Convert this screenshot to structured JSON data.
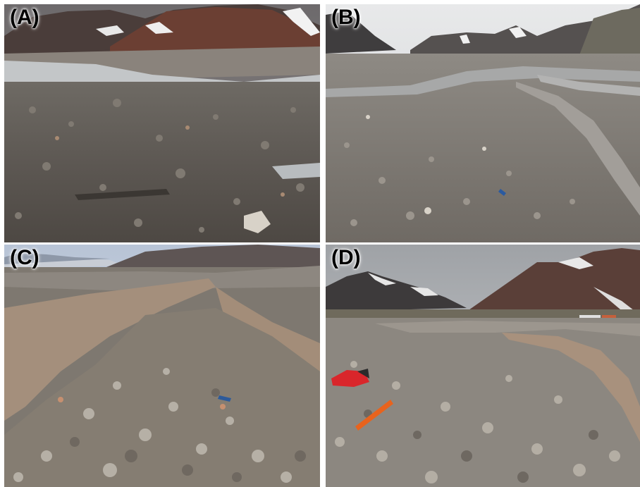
{
  "figure": {
    "panels": [
      {
        "label": "(A)"
      },
      {
        "label": "(B)"
      },
      {
        "label": "(C)"
      },
      {
        "label": "(D)"
      }
    ]
  }
}
